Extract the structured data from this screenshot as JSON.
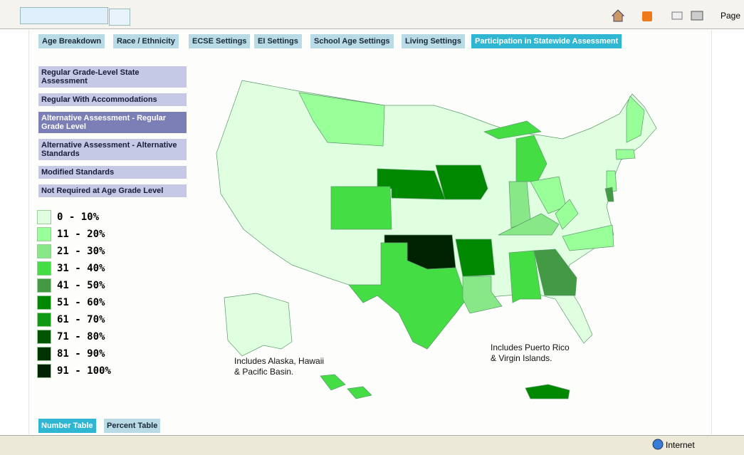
{
  "browser": {
    "menu_label": "Page",
    "status_zone": "Internet"
  },
  "tabs": [
    "Age Breakdown",
    "Race / Ethnicity",
    "ECSE Settings",
    "EI Settings",
    "School Age Settings",
    "Living Settings",
    "Participation in Statewide Assessment"
  ],
  "side_menu": [
    "Regular Grade-Level State Assessment",
    "Regular With Accommodations",
    "Alternative Assessment - Regular Grade Level",
    "Alternative Assessment - Alternative Standards",
    "Modified Standards",
    "Not Required at Age Grade Level"
  ],
  "legend": [
    {
      "label": "0 - 10%",
      "color": "#e0ffe0"
    },
    {
      "label": "11 - 20%",
      "color": "#99ff99"
    },
    {
      "label": "21 - 30%",
      "color": "#88e888"
    },
    {
      "label": "31 - 40%",
      "color": "#44dd44"
    },
    {
      "label": "41 - 50%",
      "color": "#449944"
    },
    {
      "label": "51 - 60%",
      "color": "#008800"
    },
    {
      "label": "61 - 70%",
      "color": "#119911"
    },
    {
      "label": "71 - 80%",
      "color": "#005500"
    },
    {
      "label": "81 - 90%",
      "color": "#003300"
    },
    {
      "label": "91 - 100%",
      "color": "#002200"
    }
  ],
  "map_notes": [
    "Includes Alaska, Hawaii\n& Pacific Basin.",
    "Includes Puerto Rico\n& Virgin Islands."
  ],
  "bottom_buttons": [
    "Number Table",
    "Percent Table"
  ]
}
